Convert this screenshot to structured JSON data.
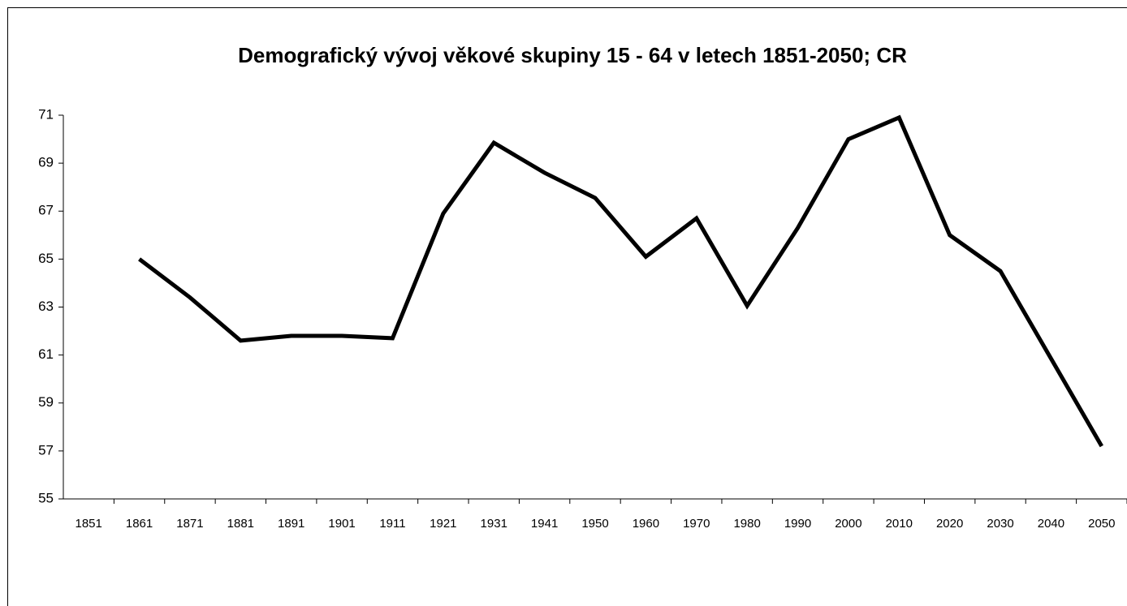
{
  "chart_data": {
    "type": "line",
    "title": "Demografický vývoj  věkové skupiny 15 - 64 v letech 1851-2050; CR",
    "categories": [
      "1851",
      "1861",
      "1871",
      "1881",
      "1891",
      "1901",
      "1911",
      "1921",
      "1931",
      "1941",
      "1950",
      "1960",
      "1970",
      "1980",
      "1990",
      "2000",
      "2010",
      "2020",
      "2030",
      "2040",
      "2050"
    ],
    "series": [
      {
        "color": "#000000",
        "values": [
          null,
          65.0,
          63.4,
          61.6,
          61.8,
          61.8,
          61.7,
          66.9,
          69.85,
          68.6,
          67.55,
          65.1,
          66.7,
          63.05,
          66.3,
          70.0,
          70.9,
          66.0,
          64.5,
          60.85,
          57.2
        ]
      }
    ],
    "ylim": [
      55,
      71
    ],
    "yticks": [
      55,
      57,
      59,
      61,
      63,
      65,
      67,
      69,
      71
    ],
    "grid": false
  }
}
